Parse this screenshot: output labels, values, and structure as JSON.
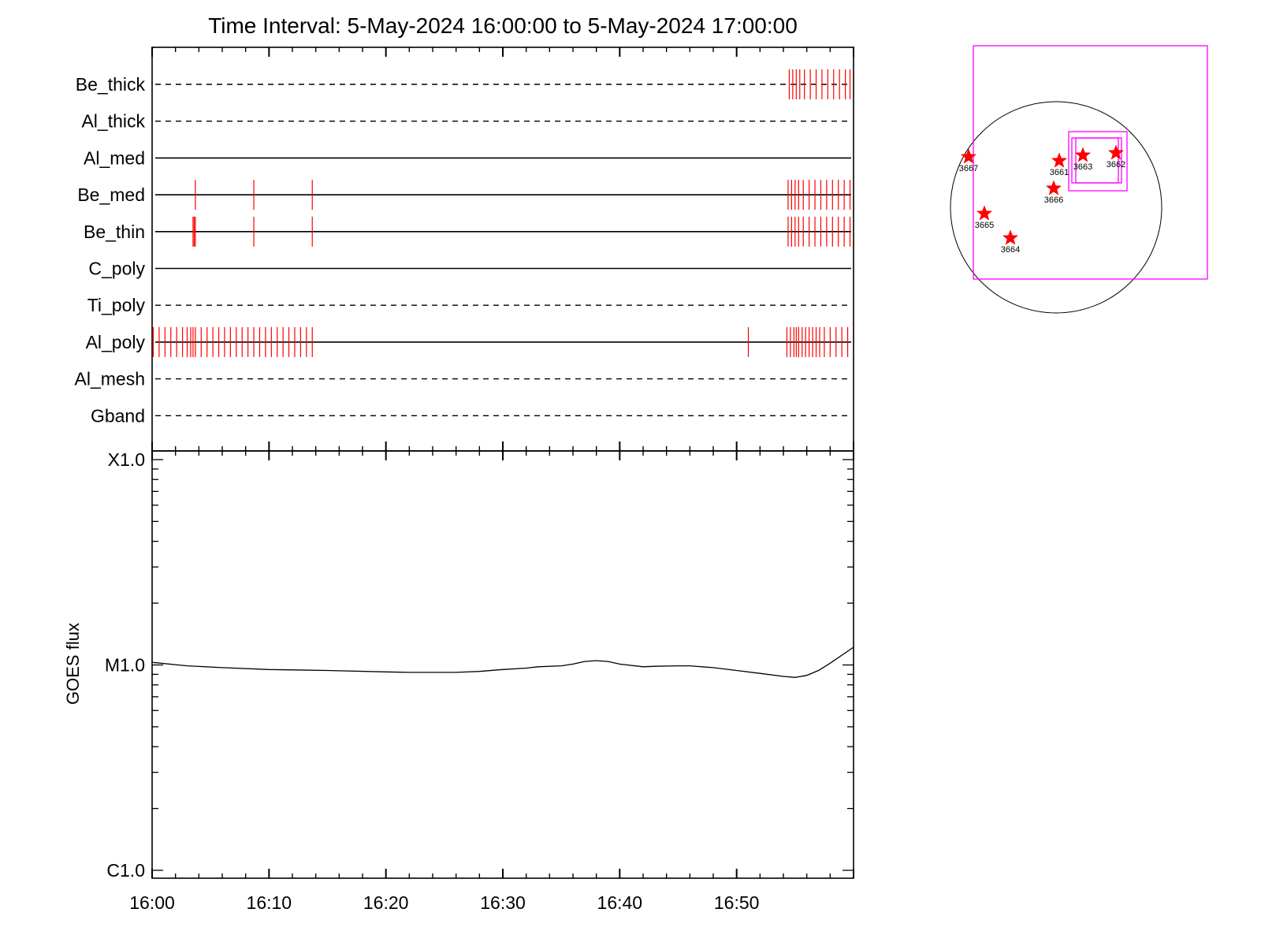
{
  "chart_data": [
    {
      "type": "timeline",
      "title": "Time Interval:  5-May-2024 16:00:00 to  5-May-2024 17:00:00",
      "x_range_minutes": [
        0,
        60
      ],
      "x_tick_labels": [
        "16:00",
        "16:10",
        "16:20",
        "16:30",
        "16:40",
        "16:50"
      ],
      "x_tick_minutes": [
        0,
        10,
        20,
        30,
        40,
        50
      ],
      "line_color": "#ff0000",
      "filters": [
        {
          "name": "Be_thick",
          "style": "dashed",
          "events": [
            54.5,
            54.8,
            55.1,
            55.4,
            55.8,
            56.3,
            56.8,
            57.3,
            57.8,
            58.3,
            58.8,
            59.3,
            59.7
          ]
        },
        {
          "name": "Al_thick",
          "style": "dashed",
          "events": []
        },
        {
          "name": "Al_med",
          "style": "solid",
          "events": []
        },
        {
          "name": "Be_med",
          "style": "solid",
          "events": [
            3.7,
            8.7,
            13.7,
            54.4,
            54.7,
            55.0,
            55.3,
            55.7,
            56.2,
            56.7,
            57.2,
            57.7,
            58.2,
            58.7,
            59.2,
            59.7
          ]
        },
        {
          "name": "Be_thin",
          "style": "solid",
          "events": [
            3.5,
            3.6,
            3.7,
            8.7,
            13.7,
            54.4,
            54.7,
            55.0,
            55.3,
            55.7,
            56.2,
            56.7,
            57.2,
            57.7,
            58.2,
            58.7,
            59.2,
            59.7
          ]
        },
        {
          "name": "C_poly",
          "style": "solid",
          "events": []
        },
        {
          "name": "Ti_poly",
          "style": "dashed",
          "events": []
        },
        {
          "name": "Al_poly",
          "style": "solid",
          "events": [
            0.1,
            0.6,
            1.1,
            1.6,
            2.1,
            2.6,
            3.0,
            3.3,
            3.5,
            3.7,
            4.2,
            4.7,
            5.2,
            5.7,
            6.2,
            6.7,
            7.2,
            7.7,
            8.2,
            8.7,
            9.2,
            9.7,
            10.2,
            10.7,
            11.2,
            11.7,
            12.2,
            12.7,
            13.2,
            13.7,
            51.0,
            54.3,
            54.6,
            54.9,
            55.1,
            55.3,
            55.6,
            55.9,
            56.2,
            56.5,
            56.8,
            57.1,
            57.5,
            58.0,
            58.5,
            59.0,
            59.5
          ]
        },
        {
          "name": "Al_mesh",
          "style": "dashed",
          "events": []
        },
        {
          "name": "Gband",
          "style": "dashed",
          "events": []
        }
      ]
    },
    {
      "type": "line",
      "ylabel": "GOES flux",
      "y_scale": "log",
      "y_range": [
        1e-06,
        0.0001
      ],
      "y_tick_labels": [
        "X1.0",
        "M1.0",
        "C1.0"
      ],
      "y_tick_values": [
        0.0001,
        1e-05,
        1e-06
      ],
      "x_tick_labels": [
        "16:00",
        "16:10",
        "16:20",
        "16:30",
        "16:40",
        "16:50"
      ],
      "x_tick_minutes": [
        0,
        10,
        20,
        30,
        40,
        50
      ],
      "series": [
        {
          "color": "#000000",
          "x_minutes": [
            0,
            3,
            6,
            10,
            15,
            20,
            22,
            24,
            26,
            28,
            30,
            32,
            33,
            35,
            36,
            37,
            38,
            39,
            40,
            42,
            43,
            45,
            46,
            48,
            50,
            52,
            54,
            55,
            56,
            57,
            58,
            60
          ],
          "y": [
            1.03e-05,
            9.9e-06,
            9.7e-06,
            9.5e-06,
            9.4e-06,
            9.25e-06,
            9.2e-06,
            9.2e-06,
            9.2e-06,
            9.3e-06,
            9.5e-06,
            9.65e-06,
            9.8e-06,
            9.9e-06,
            1.01e-05,
            1.04e-05,
            1.05e-05,
            1.04e-05,
            1.01e-05,
            9.8e-06,
            9.85e-06,
            9.9e-06,
            9.9e-06,
            9.7e-06,
            9.4e-06,
            9.1e-06,
            8.8e-06,
            8.7e-06,
            8.9e-06,
            9.4e-06,
            1.02e-05,
            1.22e-05
          ]
        }
      ]
    }
  ],
  "sun_map": {
    "disk_color": "#000000",
    "fov_color": "#ff00ff",
    "star_color": "#ff0000",
    "active_regions": [
      "3667",
      "3661",
      "3663",
      "3662",
      "3666",
      "3665",
      "3664"
    ]
  }
}
